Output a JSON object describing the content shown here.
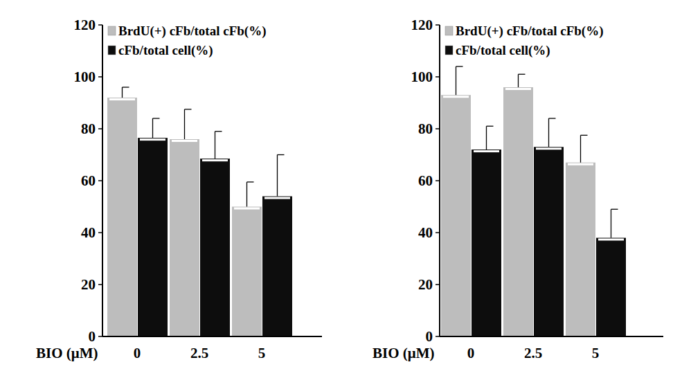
{
  "chart_data": [
    {
      "type": "bar",
      "xlabel": "BIO (μM)",
      "categories": [
        "0",
        "2.5",
        "5"
      ],
      "series": [
        {
          "name": "BrdU(+) cFb/total cFb(%)",
          "color": "#bdbdbd",
          "values": [
            92,
            76,
            50
          ],
          "errors": [
            4,
            11.5,
            9.5
          ]
        },
        {
          "name": "cFb/total cell(%)",
          "color": "#0d0d0d",
          "values": [
            76.5,
            68.5,
            54
          ],
          "errors": [
            7.5,
            10.5,
            16
          ]
        }
      ],
      "ylim": [
        0,
        120
      ],
      "yticks": [
        0,
        20,
        40,
        60,
        80,
        100,
        120
      ],
      "legend": "upper left"
    },
    {
      "type": "bar",
      "xlabel": "BIO (μM)",
      "categories": [
        "0",
        "2.5",
        "5"
      ],
      "series": [
        {
          "name": "BrdU(+) cFb/total cFb(%)",
          "color": "#bdbdbd",
          "values": [
            93,
            96,
            67
          ],
          "errors": [
            11,
            5,
            10.5
          ]
        },
        {
          "name": "cFb/total cell(%)",
          "color": "#0d0d0d",
          "values": [
            72,
            73,
            38
          ],
          "errors": [
            9,
            11,
            11
          ]
        }
      ],
      "ylim": [
        0,
        120
      ],
      "yticks": [
        0,
        20,
        40,
        60,
        80,
        100,
        120
      ],
      "legend": "upper left"
    }
  ]
}
